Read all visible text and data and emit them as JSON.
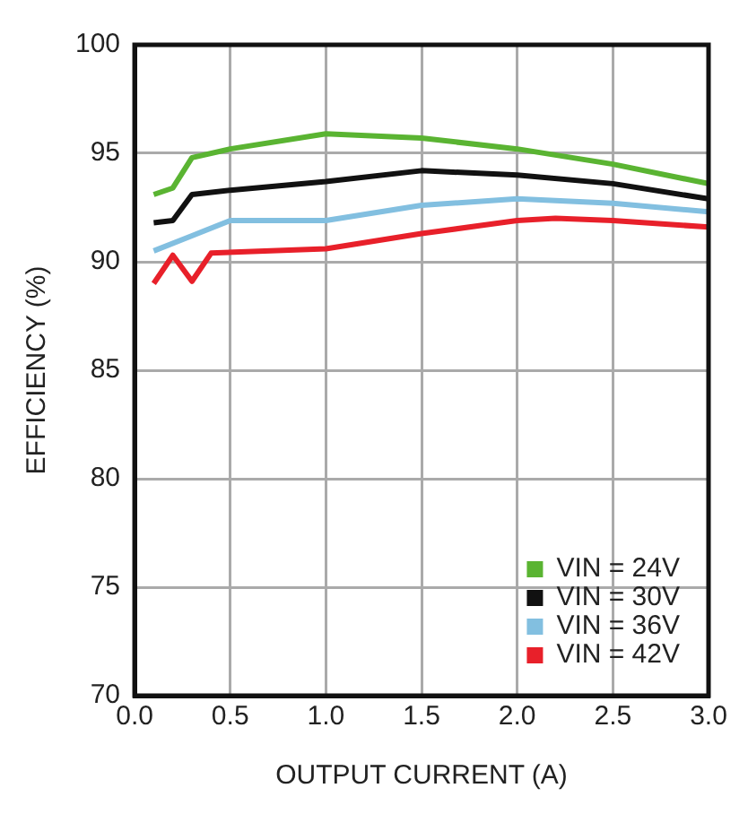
{
  "chart_data": {
    "type": "line",
    "xlabel": "OUTPUT CURRENT (A)",
    "ylabel": "EFFICIENCY (%)",
    "xlim": [
      0,
      3
    ],
    "xticks": [
      {
        "value": 0,
        "label": "0.0"
      },
      {
        "value": 0.5,
        "label": "0.5"
      },
      {
        "value": 1,
        "label": "1.0"
      },
      {
        "value": 1.5,
        "label": "1.5"
      },
      {
        "value": 2,
        "label": "2.0"
      },
      {
        "value": 2.5,
        "label": "2.5"
      },
      {
        "value": 3,
        "label": "3.0"
      }
    ],
    "ylim": [
      70,
      100
    ],
    "yticks": [
      70,
      75,
      80,
      85,
      90,
      95,
      100
    ],
    "grid": true,
    "legend": "bottom right",
    "marker": "none",
    "line_style": "solid",
    "series": [
      {
        "name": "VIN = 24V",
        "color": "#5ab432",
        "x": [
          0.1,
          0.2,
          0.3,
          0.5,
          1.0,
          1.5,
          2.0,
          2.5,
          3.0
        ],
        "values": [
          93.1,
          93.4,
          94.8,
          95.2,
          95.9,
          95.7,
          95.2,
          94.5,
          93.6
        ]
      },
      {
        "name": "VIN = 30V",
        "color": "#111111",
        "x": [
          0.1,
          0.2,
          0.3,
          0.5,
          1.0,
          1.5,
          2.0,
          2.5,
          3.0
        ],
        "values": [
          91.8,
          91.9,
          93.1,
          93.3,
          93.7,
          94.2,
          94.0,
          93.6,
          92.9
        ]
      },
      {
        "name": "VIN = 36V",
        "color": "#82bfe0",
        "x": [
          0.1,
          0.3,
          0.5,
          1.0,
          1.5,
          2.0,
          2.5,
          3.0
        ],
        "values": [
          90.5,
          91.2,
          91.9,
          91.9,
          92.6,
          92.9,
          92.7,
          92.3
        ]
      },
      {
        "name": "VIN = 42V",
        "color": "#e8202a",
        "x": [
          0.1,
          0.2,
          0.3,
          0.4,
          1.0,
          1.5,
          2.0,
          2.2,
          2.5,
          3.0
        ],
        "values": [
          89.0,
          90.3,
          89.1,
          90.4,
          90.6,
          91.3,
          91.9,
          92.0,
          91.9,
          91.6
        ]
      }
    ]
  }
}
